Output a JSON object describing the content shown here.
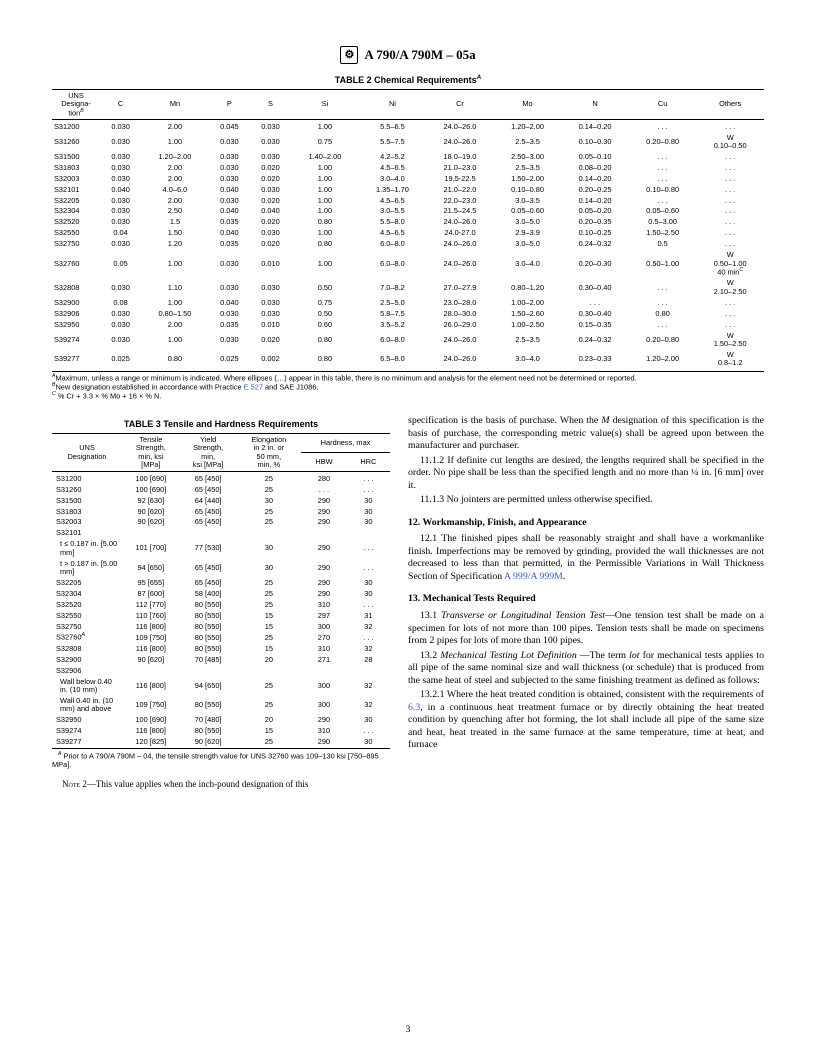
{
  "header": {
    "spec": "A 790/A 790M – 05a"
  },
  "table2": {
    "title": "TABLE 2   Chemical Requirements",
    "sup": "A",
    "columns": [
      "UNS Designa-tion",
      "C",
      "Mn",
      "P",
      "S",
      "Si",
      "Ni",
      "Cr",
      "Mo",
      "N",
      "Cu",
      "Others"
    ],
    "colSup": "B",
    "rows": [
      [
        "S31200",
        "0.030",
        "2.00",
        "0.045",
        "0.030",
        "1.00",
        "5.5–6.5",
        "24.0–26.0",
        "1.20–2.00",
        "0.14–0.20",
        ". . .",
        ". . ."
      ],
      [
        "S31260",
        "0.030",
        "1.00",
        "0.030",
        "0.030",
        "0.75",
        "5.5–7.5",
        "24.0–26.0",
        "2.5–3.5",
        "0.10–0.30",
        "0.20–0.80",
        "W 0.10–0.50"
      ],
      [
        "S31500",
        "0.030",
        "1.20–2.00",
        "0.030",
        "0.030",
        "1.40–2.00",
        "4.2–5.2",
        "18.0–19.0",
        "2.50–3.00",
        "0.05–0.10",
        ". . .",
        ". . ."
      ],
      [
        "S31803",
        "0.030",
        "2.00",
        "0.030",
        "0.020",
        "1.00",
        "4.5–6.5",
        "21.0–23.0",
        "2.5–3.5",
        "0.08–0.20",
        ". . .",
        ". . ."
      ],
      [
        "S32003",
        "0.030",
        "2.00",
        "0.030",
        "0.020",
        "1.00",
        "3.0–4.0",
        "19.5-22.5",
        "1.50–2.00",
        "0.14–0.20",
        ". . .",
        ". . ."
      ],
      [
        "S32101",
        "0.040",
        "4.0–6.0",
        "0.040",
        "0.030",
        "1.00",
        "1.35–1.70",
        "21.0–22.0",
        "0.10–0.80",
        "0.20–0.25",
        "0.10–0.80",
        ". . ."
      ],
      [
        "S32205",
        "0.030",
        "2.00",
        "0.030",
        "0.020",
        "1.00",
        "4.5–6.5",
        "22.0–23.0",
        "3.0–3.5",
        "0.14–0.20",
        ". . .",
        ". . ."
      ],
      [
        "S32304",
        "0.030",
        "2.50",
        "0.040",
        "0.040",
        "1.00",
        "3.0–5.5",
        "21.5–24.5",
        "0.05–0.60",
        "0.05–0.20",
        "0.05–0.60",
        ". . ."
      ],
      [
        "S32520",
        "0.030",
        "1.5",
        "0.035",
        "0.020",
        "0.80",
        "5.5–8.0",
        "24.0–26.0",
        "3.0–5.0",
        "0.20–0.35",
        "0.5–3.00",
        ". . ."
      ],
      [
        "S32550",
        "0.04",
        "1.50",
        "0.040",
        "0.030",
        "1.00",
        "4.5–6.5",
        "24.0-27.0",
        "2.9–3.9",
        "0.10–0.25",
        "1.50–2.50",
        ". . ."
      ],
      [
        "S32750",
        "0.030",
        "1.20",
        "0.035",
        "0.020",
        "0.80",
        "6.0–8.0",
        "24.0–26.0",
        "3.0–5.0",
        "0.24–0.32",
        "0.5",
        ". . ."
      ],
      [
        "S32760",
        "0.05",
        "1.00",
        "0.030",
        "0.010",
        "1.00",
        "6.0–8.0",
        "24.0–26.0",
        "3.0–4.0",
        "0.20–0.30",
        "0.50–1.00",
        "W 0.50–1.00 40 min"
      ],
      [
        "S32808",
        "0.030",
        "1.10",
        "0.030",
        "0.030",
        "0.50",
        "7.0–8.2",
        "27.0–27.9",
        "0.80–1.20",
        "0.30–0.40",
        ". . .",
        "W 2.10–2.50"
      ],
      [
        "S32900",
        "0.08",
        "1.00",
        "0.040",
        "0.030",
        "0.75",
        "2.5–5.0",
        "23.0–28.0",
        "1.00–2.00",
        ". . .",
        ". . .",
        ". . ."
      ],
      [
        "S32906",
        "0.030",
        "0.80–1.50",
        "0.030",
        "0.030",
        "0.50",
        "5.8–7.5",
        "28.0–30.0",
        "1.50–2.60",
        "0.30–0.40",
        "0.80",
        ". . ."
      ],
      [
        "S32950",
        "0.030",
        "2.00",
        "0.035",
        "0.010",
        "0.60",
        "3.5–5.2",
        "26.0–29.0",
        "1.00–2.50",
        "0.15–0.35",
        ". . .",
        ". . ."
      ],
      [
        "S39274",
        "0.030",
        "1.00",
        "0.030",
        "0.020",
        "0.80",
        "6.0–8.0",
        "24.0–26.0",
        "2.5–3.5",
        "0.24–0.32",
        "0.20–0.80",
        "W 1.50–2.50"
      ],
      [
        "S39277",
        "0.025",
        "0.80",
        "0.025",
        "0.002",
        "0.80",
        "6.5–8.0",
        "24.0–26.0",
        "3.0–4.0",
        "0.23–0.33",
        "1.20–2.00",
        "W 0.8–1.2"
      ]
    ],
    "noteA": "Maximum, unless a range or minimum is indicated. Where ellipses (…) appear in this table, there is no minimum and analysis for the element need not be determined or reported.",
    "noteB": "New designation established in accordance with Practice ",
    "noteB_link": "E 527",
    "noteB_tail": " and SAE J1086.",
    "noteC": "% Cr + 3.3 × % Mo + 16 × % N."
  },
  "table3": {
    "title": "TABLE 3   Tensile and Hardness Requirements",
    "cols": {
      "c1": "UNS Designation",
      "c2a": "Tensile Strength,",
      "c2b": "min, ksi [MPa]",
      "c3a": "Yield Strength,",
      "c3b": "min, ksi [MPa]",
      "c4a": "Elongation in 2 in. or 50 mm,",
      "c4b": "min, %",
      "c5": "Hardness, max",
      "c5a": "HBW",
      "c5b": "HRC"
    },
    "rows": [
      [
        "S31200",
        "100 [690]",
        "65 [450]",
        "25",
        "280",
        ". . ."
      ],
      [
        "S31260",
        "100 [690]",
        "65 [450]",
        "25",
        ". . .",
        ". . ."
      ],
      [
        "S31500",
        "92 [630]",
        "64 [440]",
        "30",
        "290",
        "30"
      ],
      [
        "S31803",
        "90 [620]",
        "65 [450]",
        "25",
        "290",
        "30"
      ],
      [
        "S32003",
        "90 [620]",
        "65 [450]",
        "25",
        "290",
        "30"
      ],
      [
        "S32101",
        "",
        "",
        "",
        "",
        ""
      ],
      [
        "  t ≤ 0.187 in. [5.00 mm]",
        "101 [700]",
        "77 [530]",
        "30",
        "290",
        ". . ."
      ],
      [
        "  t > 0.187 in. [5.00 mm]",
        "94 [650]",
        "65 [450]",
        "30",
        "290",
        ". . ."
      ],
      [
        "S32205",
        "95 [655]",
        "65 [450]",
        "25",
        "290",
        "30"
      ],
      [
        "S32304",
        "87 [600]",
        "58 [400]",
        "25",
        "290",
        "30"
      ],
      [
        "S32520",
        "112 [770]",
        "80 [550]",
        "25",
        "310",
        ". . ."
      ],
      [
        "S32550",
        "110 [760]",
        "80 [550]",
        "15",
        "297",
        "31"
      ],
      [
        "S32750",
        "116 [800]",
        "80 [550]",
        "15",
        "300",
        "32"
      ],
      [
        "S32760",
        "109 [750]",
        "80 [550]",
        "25",
        "270",
        ". . ."
      ],
      [
        "S32808",
        "116 [800]",
        "80 [550]",
        "15",
        "310",
        "32"
      ],
      [
        "S32900",
        "90 [620]",
        "70 [485]",
        "20",
        "271",
        "28"
      ],
      [
        "S32906",
        "",
        "",
        "",
        "",
        ""
      ],
      [
        "  Wall below 0.40 in. (10 mm)",
        "116 [800]",
        "94 [650]",
        "25",
        "300",
        "32"
      ],
      [
        "  Wall 0.40 in. (10 mm) and above",
        "109 [750]",
        "80 [550]",
        "25",
        "300",
        "32"
      ],
      [
        "S32950",
        "100 [690]",
        "70 [480]",
        "20",
        "290",
        "30"
      ],
      [
        "S39274",
        "116 [800]",
        "80 [550]",
        "15",
        "310",
        ". . ."
      ],
      [
        "S39277",
        "120 [825]",
        "90 [620]",
        "25",
        "290",
        "30"
      ]
    ],
    "noteA": "Prior to A 790/A 790M – 04, the tensile strength value for UNS 32760 was 109–130 ksi [750–895 MPa].",
    "supRow": "A",
    "note2_pre": "Note 2—This value applies when the inch-pound designation of this"
  },
  "body": {
    "p_cont": "specification is the basis of purchase. When the M designation of this specification is the basis of purchase, the corresponding metric value(s) shall be agreed upon between the manufacturer and purchaser.",
    "p_1112": "11.1.2 If definite cut lengths are desired, the lengths required shall be specified in the order. No pipe shall be less than the specified length and no more than ¼ in. [6 mm] over it.",
    "p_1113": "11.1.3 No jointers are permitted unless otherwise specified.",
    "h12": "12.  Workmanship, Finish, and Appearance",
    "p_121a": "12.1 The finished pipes shall be reasonably straight and shall have a workmanlike finish. Imperfections may be removed by grinding, provided the wall thicknesses are not decreased to less than that permitted, in the Permissible Variations in Wall Thickness Section of Specification ",
    "p_121_link": "A 999/A 999M",
    "p_121_tail": ".",
    "h13": "13.  Mechanical Tests Required",
    "p_131_lead": "13.1 ",
    "p_131_ital": "Transverse or Longitudinal Tension Test",
    "p_131_body": "—One tension test shall be made on a specimen for lots of not more than 100 pipes. Tension tests shall be made on specimens from 2 pipes for lots of more than 100 pipes.",
    "p_132_lead": "13.2 ",
    "p_132_ital": "Mechanical Testing Lot Definition ",
    "p_132_body": "—The term lot for mechanical tests applies to all pipe of the same nominal size and wall thickness (or schedule) that is produced from the same heat of steel and subjected to the same finishing treatment as defined as follows:",
    "p_1321a": "13.2.1 Where the heat treated condition is obtained, consistent with the requirements of ",
    "p_1321_link": "6.3",
    "p_1321b": ", in a continuous heat treatment furnace or by directly obtaining the heat treated condition by quenching after hot forming, the lot shall include all pipe of the same size and heat, heat treated in the same furnace at the same temperature, time at heat, and furnace"
  },
  "page": "3"
}
